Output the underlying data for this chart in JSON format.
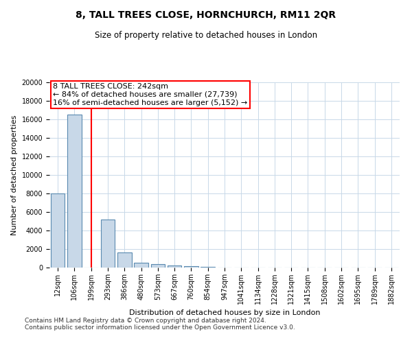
{
  "title": "8, TALL TREES CLOSE, HORNCHURCH, RM11 2QR",
  "subtitle": "Size of property relative to detached houses in London",
  "xlabel": "Distribution of detached houses by size in London",
  "ylabel": "Number of detached properties",
  "categories": [
    "12sqm",
    "106sqm",
    "199sqm",
    "293sqm",
    "386sqm",
    "480sqm",
    "573sqm",
    "667sqm",
    "760sqm",
    "854sqm",
    "947sqm",
    "1041sqm",
    "1134sqm",
    "1228sqm",
    "1321sqm",
    "1415sqm",
    "1508sqm",
    "1602sqm",
    "1695sqm",
    "1789sqm",
    "1882sqm"
  ],
  "values": [
    8000,
    16500,
    0,
    5200,
    1650,
    500,
    350,
    200,
    150,
    100,
    0,
    0,
    0,
    0,
    0,
    0,
    0,
    0,
    0,
    0,
    0
  ],
  "bar_color": "#c8d8e8",
  "bar_edge_color": "#5a8ab0",
  "vline_x": 2.0,
  "vline_color": "red",
  "annotation_line1": "8 TALL TREES CLOSE: 242sqm",
  "annotation_line2": "← 84% of detached houses are smaller (27,739)",
  "annotation_line3": "16% of semi-detached houses are larger (5,152) →",
  "ylim": [
    0,
    20000
  ],
  "yticks": [
    0,
    2000,
    4000,
    6000,
    8000,
    10000,
    12000,
    14000,
    16000,
    18000,
    20000
  ],
  "footnote_line1": "Contains HM Land Registry data © Crown copyright and database right 2024.",
  "footnote_line2": "Contains public sector information licensed under the Open Government Licence v3.0.",
  "bg_color": "#ffffff",
  "grid_color": "#c8d8e8",
  "title_fontsize": 10,
  "subtitle_fontsize": 8.5,
  "axis_label_fontsize": 8,
  "tick_fontsize": 7,
  "annotation_fontsize": 8,
  "footnote_fontsize": 6.5
}
